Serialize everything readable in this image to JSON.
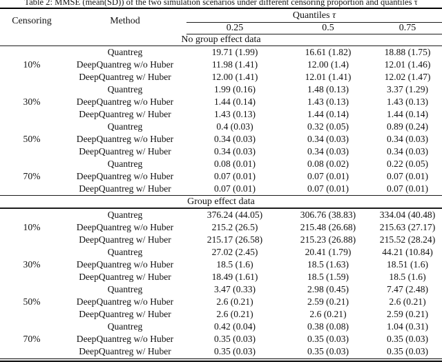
{
  "page": {
    "background": "#ffffff",
    "text_color": "#111111"
  },
  "caption": "Table 2: MMSE (mean(SD)) of the two simulation scenarios under different censoring proportion and quantiles τ",
  "header": {
    "censoring": "Censoring",
    "method": "Method",
    "quantiles_label": "Quantiles",
    "tau_symbol": "τ",
    "taus": [
      "0.25",
      "0.5",
      "0.75"
    ]
  },
  "sections": [
    {
      "label": "No group effect data",
      "rows": [
        {
          "c": "",
          "m": "Quantreg",
          "v": [
            "19.71 (1.99)",
            "16.61 (1.82)",
            "18.88 (1.75)"
          ]
        },
        {
          "c": "10%",
          "m": "DeepQuantreg w/o Huber",
          "v": [
            "11.98 (1.41)",
            "12.00 (1.4)",
            "12.01 (1.46)"
          ]
        },
        {
          "c": "",
          "m": "DeepQuantreg w/ Huber",
          "v": [
            "12.00 (1.41)",
            "12.01 (1.41)",
            "12.02 (1.47)"
          ]
        },
        {
          "c": "",
          "m": "Quantreg",
          "v": [
            "1.99 (0.16)",
            "1.48 (0.13)",
            "3.37 (1.29)"
          ]
        },
        {
          "c": "30%",
          "m": "DeepQuantreg w/o Huber",
          "v": [
            "1.44 (0.14)",
            "1.43 (0.13)",
            "1.43 (0.13)"
          ]
        },
        {
          "c": "",
          "m": "DeepQuantreg w/ Huber",
          "v": [
            "1.43 (0.13)",
            "1.44 (0.14)",
            "1.44 (0.14)"
          ]
        },
        {
          "c": "",
          "m": "Quantreg",
          "v": [
            "0.4 (0.03)",
            "0.32 (0.05)",
            "0.89 (0.24)"
          ]
        },
        {
          "c": "50%",
          "m": "DeepQuantreg w/o Huber",
          "v": [
            "0.34 (0.03)",
            "0.34 (0.03)",
            "0.34 (0.03)"
          ]
        },
        {
          "c": "",
          "m": "DeepQuantreg w/ Huber",
          "v": [
            "0.34 (0.03)",
            "0.34 (0.03)",
            "0.34 (0.03)"
          ]
        },
        {
          "c": "",
          "m": "Quantreg",
          "v": [
            "0.08 (0.01)",
            "0.08 (0.02)",
            "0.22 (0.05)"
          ]
        },
        {
          "c": "70%",
          "m": "DeepQuantreg w/o Huber",
          "v": [
            "0.07 (0.01)",
            "0.07 (0.01)",
            "0.07 (0.01)"
          ]
        },
        {
          "c": "",
          "m": "DeepQuantreg w/ Huber",
          "v": [
            "0.07 (0.01)",
            "0.07 (0.01)",
            "0.07 (0.01)"
          ]
        }
      ]
    },
    {
      "label": "Group effect data",
      "rows": [
        {
          "c": "",
          "m": "Quantreg",
          "v": [
            "376.24 (44.05)",
            "306.76 (38.83)",
            "334.04 (40.48)"
          ]
        },
        {
          "c": "10%",
          "m": "DeepQuantreg w/o Huber",
          "v": [
            "215.2 (26.5)",
            "215.48 (26.68)",
            "215.63 (27.17)"
          ]
        },
        {
          "c": "",
          "m": "DeepQuantreg w/ Huber",
          "v": [
            "215.17 (26.58)",
            "215.23 (26.88)",
            "215.52 (28.24)"
          ]
        },
        {
          "c": "",
          "m": "Quantreg",
          "v": [
            "27.02 (2.45)",
            "20.41 (1.79)",
            "44.21 (10.84)"
          ]
        },
        {
          "c": "30%",
          "m": "DeepQuantreg w/o Huber",
          "v": [
            "18.5 (1.6)",
            "18.5 (1.63)",
            "18.51 (1.6)"
          ]
        },
        {
          "c": "",
          "m": "DeepQuantreg w/ Huber",
          "v": [
            "18.49 (1.61)",
            "18.5 (1.59)",
            "18.5 (1.6)"
          ]
        },
        {
          "c": "",
          "m": "Quantreg",
          "v": [
            "3.47 (0.33)",
            "2.98 (0.45)",
            "7.47 (2.48)"
          ]
        },
        {
          "c": "50%",
          "m": "DeepQuantreg w/o Huber",
          "v": [
            "2.6 (0.21)",
            "2.59 (0.21)",
            "2.6 (0.21)"
          ]
        },
        {
          "c": "",
          "m": "DeepQuantreg w/ Huber",
          "v": [
            "2.6 (0.21)",
            "2.6 (0.21)",
            "2.59 (0.21)"
          ]
        },
        {
          "c": "",
          "m": "Quantreg",
          "v": [
            "0.42 (0.04)",
            "0.38 (0.08)",
            "1.04 (0.31)"
          ]
        },
        {
          "c": "70%",
          "m": "DeepQuantreg w/o Huber",
          "v": [
            "0.35 (0.03)",
            "0.35 (0.03)",
            "0.35 (0.03)"
          ]
        },
        {
          "c": "",
          "m": "DeepQuantreg w/ Huber",
          "v": [
            "0.35 (0.03)",
            "0.35 (0.03)",
            "0.35 (0.03)"
          ]
        }
      ]
    }
  ]
}
